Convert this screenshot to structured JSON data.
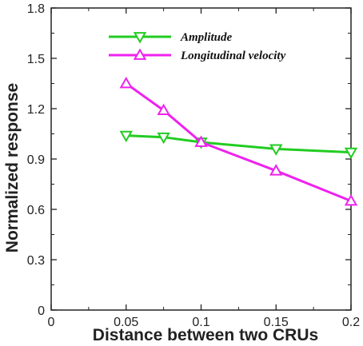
{
  "chart_data": {
    "type": "line",
    "xlabel": "Distance between two CRUs",
    "ylabel": "Normalized response",
    "xlim": [
      0,
      0.2
    ],
    "ylim": [
      0,
      1.8
    ],
    "x_ticks": [
      "0",
      "0.05",
      "0.1",
      "0.15",
      "0.2"
    ],
    "y_ticks": [
      "0",
      "0.3",
      "0.6",
      "0.9",
      "1.2",
      "1.5",
      "1.8"
    ],
    "x": [
      0.05,
      0.075,
      0.1,
      0.15,
      0.2
    ],
    "series": [
      {
        "name": "Amplitude",
        "color": "#22cc22",
        "marker": "triangle-down",
        "values": [
          1.04,
          1.03,
          1.0,
          0.96,
          0.94
        ]
      },
      {
        "name": "Longitudinal velocity",
        "color": "#ee22ee",
        "marker": "triangle-up",
        "values": [
          1.35,
          1.19,
          1.0,
          0.83,
          0.65
        ]
      }
    ],
    "grid": false,
    "legend_position": "top-right"
  }
}
